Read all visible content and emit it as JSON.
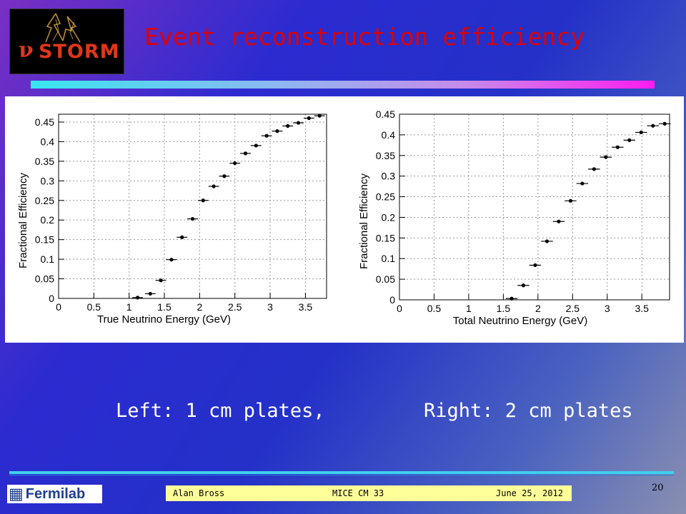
{
  "slide": {
    "title": "Event reconstruction efficiency",
    "logo_text": "STORM",
    "logo_symbol": "ν",
    "caption_left": "Left: 1 cm plates,",
    "caption_right": "Right: 2 cm plates",
    "footer": {
      "author": "Alan Bross",
      "meeting": "MICE CM 33",
      "date": "June 25, 2012",
      "page": "20",
      "lab": "Fermilab"
    },
    "colors": {
      "title": "#e00000",
      "logo_text": "#e0361a",
      "footer_bar": "#ffff99",
      "accent_rule_start": "#38e6f2",
      "accent_rule_end": "#ff1cf0"
    }
  },
  "chart_data": [
    {
      "type": "scatter",
      "xlabel": "True Neutrino Energy (GeV)",
      "ylabel": "Fractional Efficiency",
      "xlim": [
        0,
        3.8
      ],
      "ylim": [
        0,
        0.47
      ],
      "xticks": [
        "0",
        "0.5",
        "1",
        "1.5",
        "2",
        "2.5",
        "3",
        "3.5"
      ],
      "yticks": [
        "0",
        "0.05",
        "0.1",
        "0.15",
        "0.2",
        "0.25",
        "0.3",
        "0.35",
        "0.4",
        "0.45"
      ],
      "grid": true,
      "bin_width": 0.15,
      "x": [
        1.12,
        1.3,
        1.45,
        1.6,
        1.75,
        1.9,
        2.05,
        2.2,
        2.35,
        2.5,
        2.65,
        2.8,
        2.95,
        3.1,
        3.25,
        3.4,
        3.55,
        3.7
      ],
      "y": [
        0.002,
        0.012,
        0.046,
        0.099,
        0.156,
        0.203,
        0.25,
        0.286,
        0.312,
        0.345,
        0.37,
        0.39,
        0.415,
        0.427,
        0.44,
        0.448,
        0.46,
        0.466
      ]
    },
    {
      "type": "scatter",
      "xlabel": "Total Neutrino Energy (GeV)",
      "ylabel": "Fractional Efficiency",
      "xlim": [
        0,
        3.9
      ],
      "ylim": [
        0,
        0.45
      ],
      "xticks": [
        "0",
        "0.5",
        "1",
        "1.5",
        "2",
        "2.5",
        "3",
        "3.5"
      ],
      "yticks": [
        "0",
        "0.05",
        "0.1",
        "0.15",
        "0.2",
        "0.25",
        "0.3",
        "0.35",
        "0.4",
        "0.45"
      ],
      "grid": true,
      "bin_width": 0.17,
      "x": [
        1.62,
        1.79,
        1.96,
        2.13,
        2.3,
        2.47,
        2.64,
        2.81,
        2.98,
        3.15,
        3.32,
        3.49,
        3.66,
        3.83
      ],
      "y": [
        0.003,
        0.035,
        0.084,
        0.142,
        0.19,
        0.24,
        0.282,
        0.317,
        0.346,
        0.37,
        0.387,
        0.406,
        0.422,
        0.427
      ]
    }
  ]
}
